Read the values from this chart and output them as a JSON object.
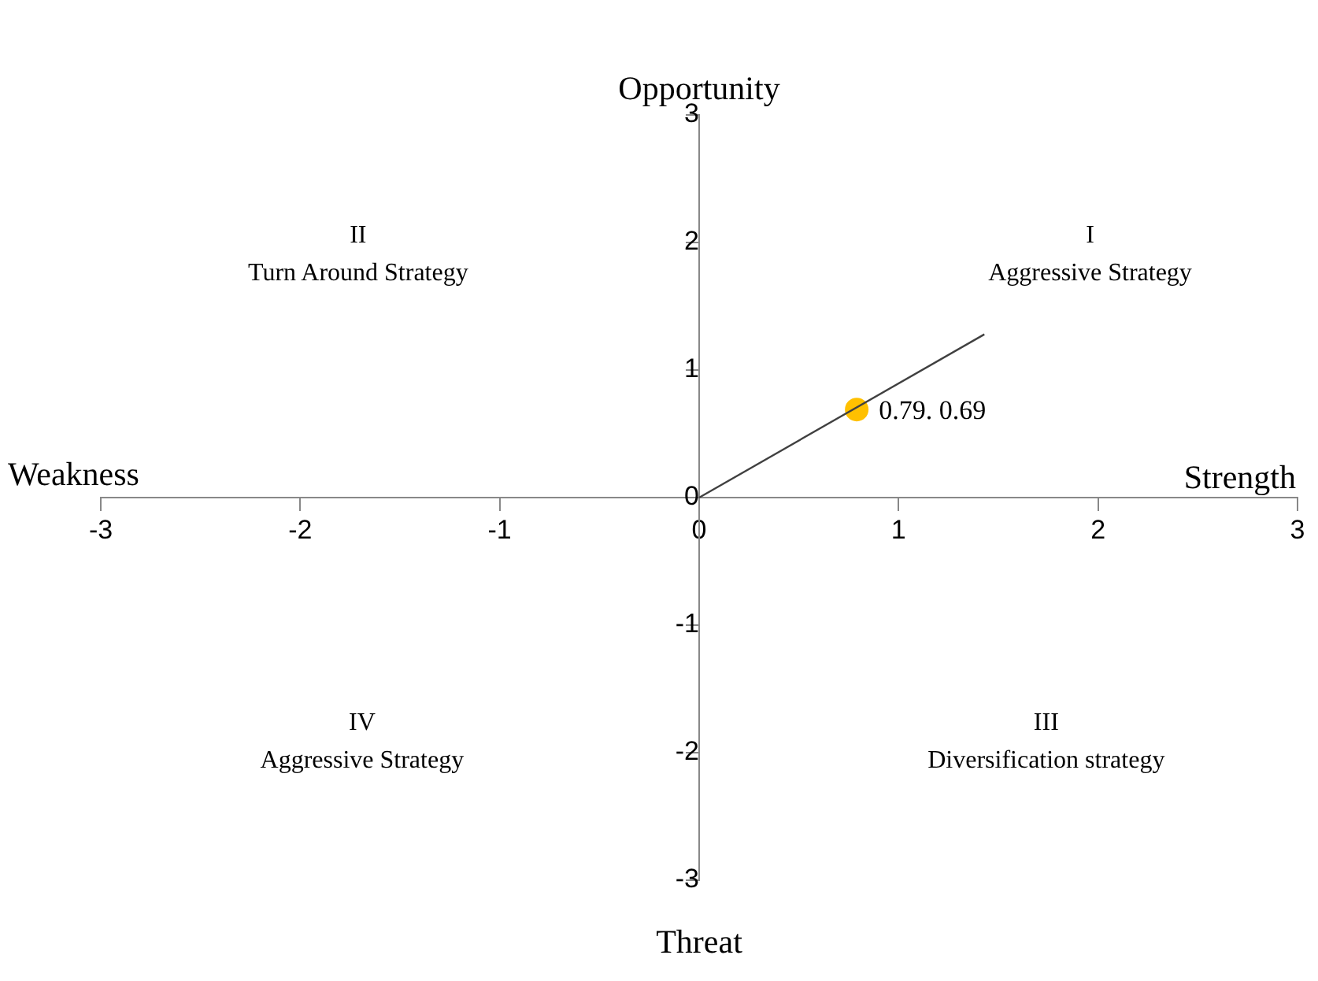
{
  "chart_data": {
    "type": "scatter",
    "xlabel": "Strength",
    "ylabel": "Opportunity",
    "series": [
      {
        "type": "line",
        "color": "#404040",
        "x": [
          0,
          1.43
        ],
        "values": [
          0,
          1.28
        ],
        "marker": "none"
      },
      {
        "type": "scatter",
        "color": "#ffc000",
        "x": [
          0.79
        ],
        "values": [
          0.69
        ],
        "value_labels": [
          "0.79. 0.69"
        ],
        "marker": "circle"
      }
    ],
    "xlim": [
      -3,
      3
    ],
    "xticks": [
      -3,
      -2,
      -1,
      0,
      1,
      2,
      3
    ],
    "ylim": [
      -3,
      3
    ],
    "yticks": [
      -3,
      -2,
      -1,
      0,
      1,
      2,
      3
    ],
    "grid": false,
    "legend": false,
    "annotations": [
      "Weakness",
      "Threat",
      "I\nAggressive Strategy",
      "II\nTurn Around Strategy",
      "III\nDiversification strategy",
      "IV\nAggressive Strategy"
    ]
  }
}
